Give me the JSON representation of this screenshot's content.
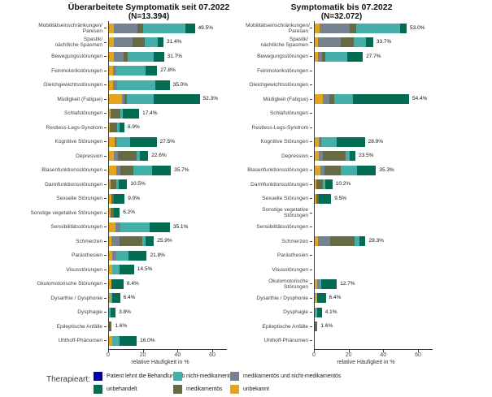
{
  "chart_data": {
    "type": "bar",
    "orientation": "horizontal-stacked",
    "xlabel": "relative Häufigkeit in %",
    "xticks": [
      0,
      20,
      40,
      60
    ],
    "xlim": [
      0,
      68
    ],
    "grid": false,
    "legend_position": "bottom",
    "stack_keys": [
      "unbekannt",
      "medikamentös und nicht-medikamentös",
      "medikamentös",
      "nicht-medikamentös",
      "unbehandelt"
    ],
    "stack_colors": [
      "#E3A51F",
      "#75828F",
      "#666A45",
      "#44AEA9",
      "#036C52"
    ],
    "categories": [
      "Mobilitätseinschränkungen/\nParesen",
      "Spastik/\nnächtliche Spasmen",
      "Bewegungsstörungen",
      "Feinmotorikstörungen",
      "Gleichgewichtsstörungen",
      "Müdigkeit (Fatigue)",
      "Schlafstörungen",
      "Restless-Legs-Syndrom",
      "Kognitive Störungen",
      "Depression",
      "Blasenfunktionsstörungen",
      "Darmfunktionsstörungen",
      "Sexuelle Störungen",
      "Sonstige vegetative Störungen",
      "Sensibilitätsstörungen",
      "Schmerzen",
      "Parästhesien",
      "Visusstörungen",
      "Okulomotorische Störungen",
      "Dysarthie / Dysphonie",
      "Dysphagie",
      "Epileptische Anfälle",
      "Uhthoff-Phänomen"
    ],
    "panels": [
      {
        "title": "Überarbeitete Symptomatik seit 07.2022",
        "subtitle": "(N=13.394)",
        "totals": [
          "49.5%",
          "31.4%",
          "31.7%",
          "27.8%",
          "35.0%",
          "52.3%",
          "17.4%",
          "8.9%",
          "27.5%",
          "22.6%",
          "35.7%",
          "10.5%",
          "9.0%",
          "6.2%",
          "35.1%",
          "25.9%",
          "21.8%",
          "14.5%",
          "8.4%",
          "6.4%",
          "3.8%",
          "1.6%",
          "16.0%"
        ],
        "segments": [
          [
            2.8,
            13.6,
            3.3,
            24.4,
            5.4
          ],
          [
            2.8,
            10.8,
            7.0,
            7.5,
            3.3
          ],
          [
            2.8,
            5.6,
            2.3,
            15.0,
            6.0
          ],
          [
            2.3,
            1.9,
            0,
            17.0,
            6.6
          ],
          [
            2.3,
            2.3,
            0,
            22.0,
            8.4
          ],
          [
            7.5,
            1.4,
            1.4,
            15.5,
            26.5
          ],
          [
            0.9,
            0,
            5.6,
            1.4,
            9.5
          ],
          [
            0.5,
            0,
            4.2,
            1.4,
            2.8
          ],
          [
            3.3,
            0.5,
            0.5,
            8.0,
            15.2
          ],
          [
            2.8,
            2.3,
            10.8,
            1.9,
            4.8
          ],
          [
            4.2,
            2.3,
            7.5,
            10.8,
            10.9
          ],
          [
            0.9,
            0,
            3.3,
            1.4,
            4.9
          ],
          [
            1.4,
            0,
            1.4,
            0,
            6.2
          ],
          [
            0.9,
            0,
            1.9,
            0,
            3.4
          ],
          [
            3.8,
            2.8,
            0,
            16.9,
            11.6
          ],
          [
            1.4,
            4.7,
            13.2,
            1.9,
            4.7
          ],
          [
            1.9,
            2.3,
            0,
            7.0,
            10.6
          ],
          [
            1.9,
            0,
            0,
            4.2,
            8.4
          ],
          [
            1.4,
            0,
            0,
            0,
            7.0
          ],
          [
            0.9,
            0,
            0,
            1.0,
            4.5
          ],
          [
            0,
            0,
            0,
            1.0,
            2.8
          ],
          [
            0,
            0,
            1.6,
            0,
            0
          ],
          [
            1.9,
            0,
            0,
            4.2,
            9.9
          ]
        ]
      },
      {
        "title": "Symptomatik bis 07.2022",
        "subtitle": "(N=32.072)",
        "totals": [
          "53.0%",
          "33.7%",
          "27.7%",
          null,
          null,
          "54.4%",
          null,
          null,
          "28.9%",
          "23.5%",
          "35.3%",
          "10.2%",
          "9.5%",
          null,
          null,
          "29.3%",
          null,
          null,
          "12.7%",
          "6.4%",
          "4.1%",
          "1.6%",
          null
        ],
        "segments": [
          [
            2.8,
            17.4,
            3.8,
            25.0,
            4.0
          ],
          [
            1.9,
            13.2,
            7.5,
            7.0,
            4.1
          ],
          [
            1.9,
            2.3,
            1.9,
            12.7,
            8.9
          ],
          null,
          null,
          [
            4.7,
            3.8,
            2.8,
            10.8,
            32.3
          ],
          null,
          null,
          [
            2.3,
            0.9,
            0.5,
            8.9,
            16.3
          ],
          [
            2.3,
            2.3,
            13.2,
            2.3,
            3.4
          ],
          [
            3.3,
            2.3,
            9.4,
            9.4,
            10.9
          ],
          [
            0.9,
            0,
            3.8,
            1.4,
            4.1
          ],
          [
            0.9,
            0,
            1.4,
            0,
            7.2
          ],
          null,
          null,
          [
            1.9,
            7.0,
            14.1,
            2.8,
            3.5
          ],
          null,
          null,
          [
            1.4,
            1.4,
            0,
            1.0,
            8.9
          ],
          [
            1.4,
            0,
            0,
            0,
            5.0
          ],
          [
            0,
            0,
            0,
            1.4,
            2.7
          ],
          [
            0,
            0,
            1.6,
            0,
            0
          ],
          null
        ]
      }
    ]
  },
  "legend": {
    "title": "Therapieart:",
    "items": [
      {
        "label": "Patient lehnt die Behandlung ab",
        "color": "#0000A0",
        "name": "patient-lehnt-behandlung-ab"
      },
      {
        "label": "unbehandelt",
        "color": "#036C52",
        "name": "unbehandelt"
      },
      {
        "label": "nicht-medikamentös",
        "color": "#44AEA9",
        "name": "nicht-medikamentoes"
      },
      {
        "label": "medikamentös",
        "color": "#666A45",
        "name": "medikamentoes"
      },
      {
        "label": "medikamentös und nicht-medikamentös",
        "color": "#75828F",
        "name": "medikamentoes-und-nicht-medikamentoes"
      },
      {
        "label": "unbekannt",
        "color": "#E3A51F",
        "name": "unbekannt"
      }
    ]
  }
}
